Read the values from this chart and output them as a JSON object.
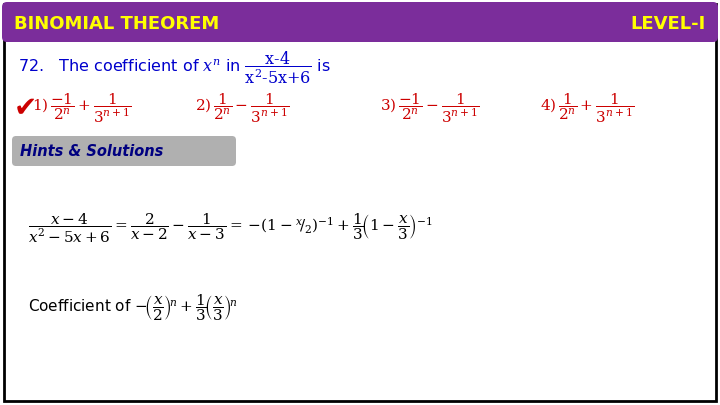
{
  "bg_color": "#ffffff",
  "border_color": "#000000",
  "header_bg": "#7b2d9b",
  "header_text_left": "BINOMIAL THEOREM",
  "header_text_right": "LEVEL-I",
  "header_text_color": "#ffff00",
  "question_color": "#0000cc",
  "answer_color": "#cc0000",
  "hints_bg": "#b0b0b0",
  "hints_text": "Hints & Solutions",
  "hints_text_color": "#000080",
  "solution_color": "#000000",
  "fig_w": 7.2,
  "fig_h": 4.05,
  "dpi": 100
}
